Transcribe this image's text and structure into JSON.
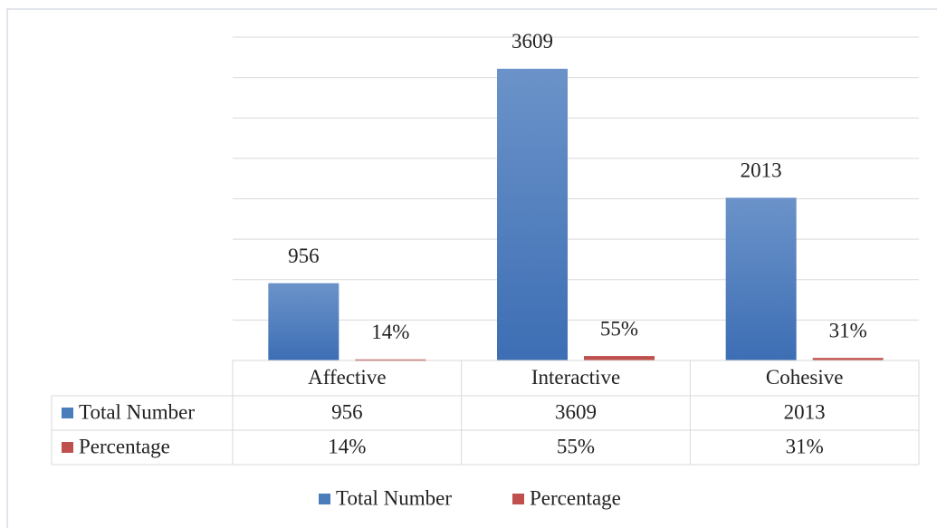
{
  "chart_data": {
    "type": "bar",
    "categories": [
      "Affective",
      "Interactive",
      "Cohesive"
    ],
    "series": [
      {
        "name": "Total Number",
        "color": "#4a7ebb",
        "values": [
          956,
          3609,
          2013
        ]
      },
      {
        "name": "Percentage",
        "color": "#c0504d",
        "values": [
          14,
          55,
          31
        ],
        "value_labels": [
          "14%",
          "55%",
          "31%"
        ]
      }
    ],
    "ylim": [
      0,
      4000
    ],
    "yticks": [
      0,
      500,
      1000,
      1500,
      2000,
      2500,
      3000,
      3500,
      4000
    ],
    "grid": true,
    "data_table": true,
    "legend": "bottom"
  }
}
